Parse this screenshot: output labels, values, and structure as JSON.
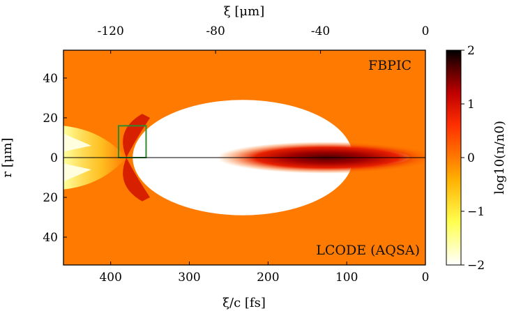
{
  "chart_data": {
    "type": "heatmap",
    "title": "",
    "xlabel": "ξ/c [fs]",
    "xlabel_top": "ξ [μm]",
    "ylabel": "r [μm]",
    "colorbar_label": "log10(n/n0)",
    "xlim": [
      460,
      0
    ],
    "xlim_top": [
      -138,
      0
    ],
    "ylim_upper": [
      0,
      54
    ],
    "ylim_lower": [
      0,
      54
    ],
    "x_ticks": [
      "400",
      "300",
      "200",
      "100",
      "0"
    ],
    "x_tick_values": [
      400,
      300,
      200,
      100,
      0
    ],
    "x_ticks_top": [
      "-120",
      "-80",
      "-40",
      "0"
    ],
    "x_tick_values_top": [
      -120,
      -80,
      -40,
      0
    ],
    "y_ticks_upper": [
      "40",
      "20",
      "0"
    ],
    "y_tick_values_upper": [
      40,
      20,
      0
    ],
    "y_ticks_lower": [
      "20",
      "40"
    ],
    "y_tick_values_lower": [
      20,
      40
    ],
    "colorbar_ticks": [
      "2",
      "1",
      "0",
      "−1",
      "−2"
    ],
    "colorbar_tick_values": [
      2,
      1,
      0,
      -1,
      -2
    ],
    "colorbar_range": [
      -2,
      2
    ],
    "colormap": [
      "#ffffff",
      "#ffff40",
      "#ffa000",
      "#ff4a00",
      "#c80000",
      "#500000",
      "#000000"
    ],
    "background_color": "#ff7a00",
    "annotations": [
      "FBPIC",
      "LCODE (AQSA)"
    ],
    "features": {
      "bubble_center_fs": 232,
      "bubble_rear_fs": 380,
      "bubble_front_fs": 100,
      "bubble_max_radius_um": 29,
      "box_x_fs": [
        355,
        390
      ],
      "box_r_um": [
        0,
        16
      ],
      "box_color": "#2e8b2e"
    }
  }
}
